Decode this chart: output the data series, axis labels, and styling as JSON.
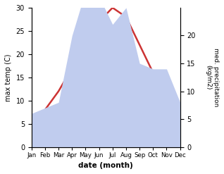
{
  "months": [
    "Jan",
    "Feb",
    "Mar",
    "Apr",
    "May",
    "Jun",
    "Jul",
    "Aug",
    "Sep",
    "Oct",
    "Nov",
    "Dec"
  ],
  "temperature": [
    5,
    8,
    12,
    17,
    22,
    27,
    30,
    28,
    22,
    16,
    11,
    9
  ],
  "precipitation": [
    6,
    7,
    8,
    20,
    28,
    27,
    22,
    25,
    15,
    14,
    14,
    8
  ],
  "temp_color": "#cc3333",
  "precip_color": "#c0ccee",
  "ylabel_left": "max temp (C)",
  "ylabel_right": "med. precipitation\n(kg/m2)",
  "xlabel": "date (month)",
  "ylim_left": [
    0,
    30
  ],
  "ylim_right": [
    0,
    25
  ],
  "yticks_left": [
    0,
    5,
    10,
    15,
    20,
    25,
    30
  ],
  "yticks_right": [
    0,
    5,
    10,
    15,
    20
  ]
}
